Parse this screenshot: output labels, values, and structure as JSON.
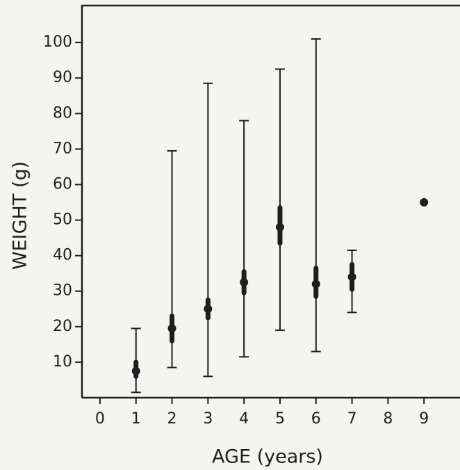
{
  "chart_data": {
    "type": "errorbar-scatter",
    "xlabel": "AGE (years)",
    "ylabel": "WEIGHT (g)",
    "x": [
      1,
      2,
      3,
      4,
      5,
      6,
      7,
      9
    ],
    "values": [
      7.5,
      19.5,
      25,
      32.5,
      48,
      32,
      34,
      55
    ],
    "range_low": [
      1.5,
      8.5,
      6,
      11.5,
      19,
      13,
      24,
      null
    ],
    "range_high": [
      19.5,
      69.5,
      88.5,
      78,
      92.5,
      101,
      41.5,
      null
    ],
    "inner_low": [
      6,
      16,
      22.5,
      29.5,
      43.5,
      28.5,
      30.5,
      null
    ],
    "inner_high": [
      10,
      23,
      27.5,
      35.5,
      53.5,
      36.5,
      37.5,
      null
    ],
    "color": "#1e1e1e",
    "xlim": [
      -0.5,
      10
    ],
    "ylim": [
      0,
      110.4
    ],
    "xticks": [
      0,
      1,
      2,
      3,
      4,
      5,
      6,
      7,
      8,
      9
    ],
    "yticks": [
      10,
      20,
      30,
      40,
      50,
      60,
      70,
      80,
      90,
      100
    ]
  }
}
